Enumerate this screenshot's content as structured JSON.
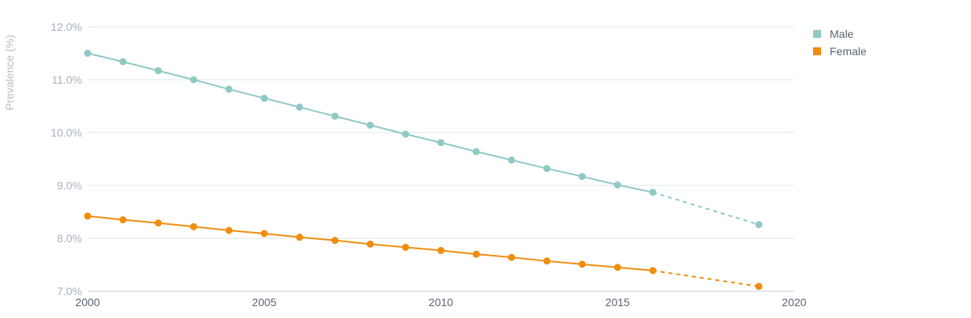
{
  "chart_data": {
    "type": "line",
    "ylabel": "Prevalence (%)",
    "xlabel": "",
    "xlim": [
      2000,
      2020
    ],
    "ylim": [
      7.0,
      12.0
    ],
    "x_ticks": [
      "2000",
      "2005",
      "2010",
      "2015",
      "2020"
    ],
    "y_ticks": [
      "7.0%",
      "8.0%",
      "9.0%",
      "10.0%",
      "11.0%",
      "12.0%"
    ],
    "grid": true,
    "legend_position": "top-right",
    "series": [
      {
        "name": "Male",
        "color": "#8fc9c6",
        "x": [
          2000,
          2001,
          2002,
          2003,
          2004,
          2005,
          2006,
          2007,
          2008,
          2009,
          2010,
          2011,
          2012,
          2013,
          2014,
          2015,
          2016,
          2019
        ],
        "y": [
          11.5,
          11.34,
          11.17,
          11.0,
          10.82,
          10.65,
          10.48,
          10.31,
          10.14,
          9.97,
          9.81,
          9.64,
          9.48,
          9.32,
          9.17,
          9.01,
          8.87,
          8.26
        ],
        "dashed_from": 2016
      },
      {
        "name": "Female",
        "color": "#ef8d0e",
        "x": [
          2000,
          2001,
          2002,
          2003,
          2004,
          2005,
          2006,
          2007,
          2008,
          2009,
          2010,
          2011,
          2012,
          2013,
          2014,
          2015,
          2016,
          2019
        ],
        "y": [
          8.42,
          8.35,
          8.29,
          8.22,
          8.15,
          8.09,
          8.02,
          7.96,
          7.89,
          7.83,
          7.77,
          7.7,
          7.64,
          7.57,
          7.51,
          7.45,
          7.39,
          7.09
        ],
        "dashed_from": 2016
      }
    ]
  }
}
